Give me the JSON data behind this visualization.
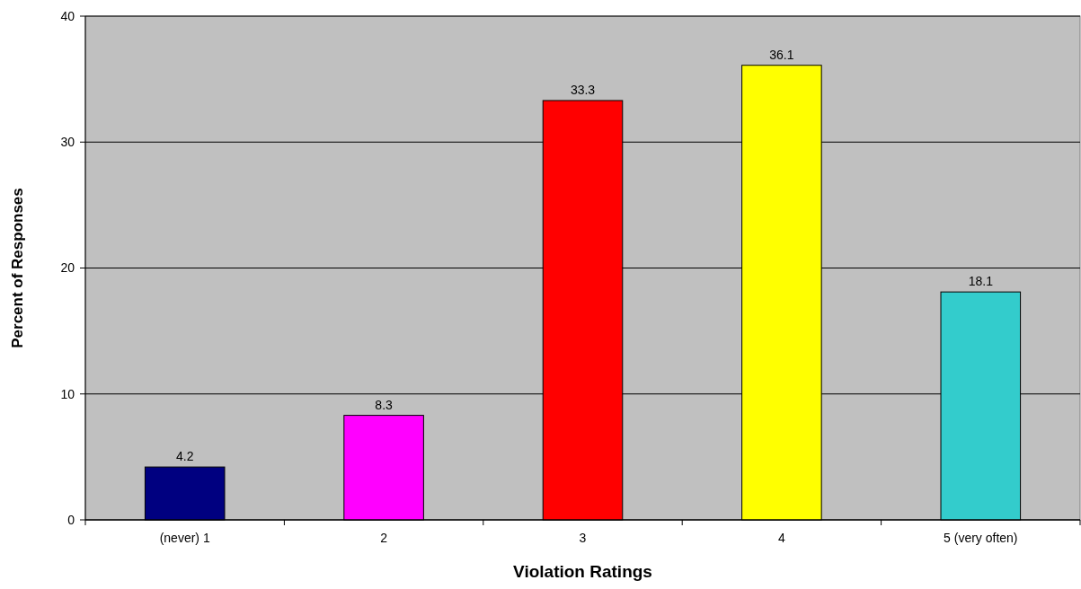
{
  "chart_data": {
    "type": "bar",
    "xlabel": "Violation Ratings",
    "ylabel": "Percent of Responses",
    "categories": [
      "(never) 1",
      "2",
      "3",
      "4",
      "5 (very often)"
    ],
    "values": [
      4.2,
      8.3,
      33.3,
      36.1,
      18.1
    ],
    "colors": [
      "#000080",
      "#ff00ff",
      "#ff0000",
      "#ffff00",
      "#33cccc"
    ],
    "ylim": [
      0,
      40
    ],
    "yticks": [
      0,
      10,
      20,
      30,
      40
    ],
    "grid": "y",
    "data_labels": true
  }
}
